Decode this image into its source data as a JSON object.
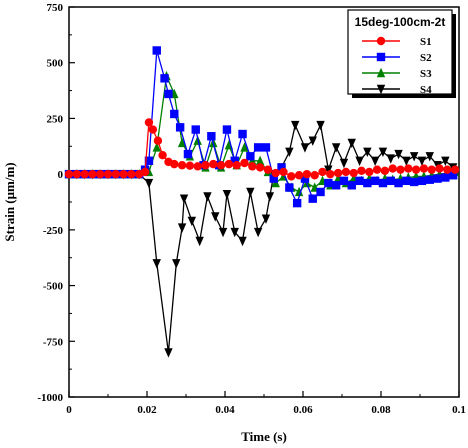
{
  "chart_data": {
    "type": "line",
    "title": "",
    "xlabel": "Time (s)",
    "ylabel": "Strain (μm/m)",
    "xlim": [
      0,
      0.1
    ],
    "ylim": [
      -1000,
      750
    ],
    "xticks": [
      0,
      0.02,
      0.04,
      0.06,
      0.08,
      0.1
    ],
    "xtick_labels": [
      "0",
      "0.02",
      "0.04",
      "0.06",
      "0.08",
      "0.1"
    ],
    "yticks": [
      -1000,
      -750,
      -500,
      -250,
      0,
      250,
      500,
      750
    ],
    "ytick_labels": [
      "-1000",
      "-750",
      "-500",
      "-250",
      "0",
      "250",
      "500",
      "750"
    ],
    "grid": false,
    "legend": {
      "title": "15deg-100cm-2t",
      "position": "top-right"
    },
    "series": [
      {
        "name": "S1",
        "color": "#ff0000",
        "marker": "circle",
        "points": [
          [
            0,
            0
          ],
          [
            0.002,
            0
          ],
          [
            0.004,
            0
          ],
          [
            0.006,
            0
          ],
          [
            0.008,
            0
          ],
          [
            0.01,
            0
          ],
          [
            0.012,
            0
          ],
          [
            0.014,
            0
          ],
          [
            0.016,
            0
          ],
          [
            0.018,
            0
          ],
          [
            0.0195,
            10
          ],
          [
            0.0205,
            232
          ],
          [
            0.0215,
            200
          ],
          [
            0.0228,
            150
          ],
          [
            0.024,
            85
          ],
          [
            0.0255,
            55
          ],
          [
            0.027,
            45
          ],
          [
            0.029,
            40
          ],
          [
            0.031,
            38
          ],
          [
            0.033,
            35
          ],
          [
            0.035,
            40
          ],
          [
            0.037,
            45
          ],
          [
            0.039,
            40
          ],
          [
            0.041,
            45
          ],
          [
            0.043,
            40
          ],
          [
            0.045,
            50
          ],
          [
            0.047,
            35
          ],
          [
            0.049,
            30
          ],
          [
            0.051,
            20
          ],
          [
            0.053,
            5
          ],
          [
            0.055,
            10
          ],
          [
            0.057,
            -10
          ],
          [
            0.059,
            -5
          ],
          [
            0.061,
            0
          ],
          [
            0.063,
            -5
          ],
          [
            0.065,
            10
          ],
          [
            0.067,
            0
          ],
          [
            0.069,
            5
          ],
          [
            0.071,
            10
          ],
          [
            0.073,
            5
          ],
          [
            0.075,
            15
          ],
          [
            0.077,
            10
          ],
          [
            0.079,
            20
          ],
          [
            0.081,
            15
          ],
          [
            0.083,
            25
          ],
          [
            0.085,
            20
          ],
          [
            0.087,
            25
          ],
          [
            0.089,
            20
          ],
          [
            0.091,
            25
          ],
          [
            0.093,
            20
          ],
          [
            0.095,
            25
          ],
          [
            0.097,
            20
          ],
          [
            0.099,
            20
          ]
        ]
      },
      {
        "name": "S2",
        "color": "#0000ff",
        "marker": "square",
        "points": [
          [
            0,
            0
          ],
          [
            0.002,
            0
          ],
          [
            0.004,
            0
          ],
          [
            0.006,
            0
          ],
          [
            0.008,
            0
          ],
          [
            0.01,
            0
          ],
          [
            0.012,
            0
          ],
          [
            0.014,
            0
          ],
          [
            0.016,
            0
          ],
          [
            0.018,
            0
          ],
          [
            0.0195,
            20
          ],
          [
            0.0205,
            60
          ],
          [
            0.0225,
            555
          ],
          [
            0.0245,
            430
          ],
          [
            0.0255,
            360
          ],
          [
            0.027,
            270
          ],
          [
            0.0285,
            210
          ],
          [
            0.0305,
            90
          ],
          [
            0.0325,
            200
          ],
          [
            0.0345,
            40
          ],
          [
            0.0365,
            170
          ],
          [
            0.0385,
            40
          ],
          [
            0.0405,
            200
          ],
          [
            0.0425,
            60
          ],
          [
            0.0445,
            180
          ],
          [
            0.0465,
            80
          ],
          [
            0.0485,
            120
          ],
          [
            0.0505,
            120
          ],
          [
            0.0525,
            -20
          ],
          [
            0.0545,
            30
          ],
          [
            0.0565,
            -60
          ],
          [
            0.0585,
            -130
          ],
          [
            0.0605,
            -20
          ],
          [
            0.0625,
            -110
          ],
          [
            0.0645,
            -80
          ],
          [
            0.0665,
            -40
          ],
          [
            0.0685,
            -50
          ],
          [
            0.0705,
            -30
          ],
          [
            0.0725,
            -50
          ],
          [
            0.0745,
            -30
          ],
          [
            0.0765,
            -40
          ],
          [
            0.0785,
            -30
          ],
          [
            0.0805,
            -40
          ],
          [
            0.0825,
            -30
          ],
          [
            0.0845,
            -40
          ],
          [
            0.0865,
            -30
          ],
          [
            0.0885,
            -35
          ],
          [
            0.0905,
            -30
          ],
          [
            0.0925,
            -25
          ],
          [
            0.0945,
            -20
          ],
          [
            0.0965,
            -15
          ],
          [
            0.0985,
            -5
          ]
        ]
      },
      {
        "name": "S3",
        "color": "#008000",
        "marker": "triangle-up",
        "points": [
          [
            0,
            0
          ],
          [
            0.002,
            0
          ],
          [
            0.004,
            0
          ],
          [
            0.006,
            0
          ],
          [
            0.008,
            0
          ],
          [
            0.01,
            0
          ],
          [
            0.012,
            0
          ],
          [
            0.014,
            0
          ],
          [
            0.016,
            0
          ],
          [
            0.018,
            0
          ],
          [
            0.0205,
            10
          ],
          [
            0.0225,
            120
          ],
          [
            0.025,
            440
          ],
          [
            0.027,
            360
          ],
          [
            0.029,
            140
          ],
          [
            0.031,
            80
          ],
          [
            0.033,
            150
          ],
          [
            0.035,
            30
          ],
          [
            0.037,
            140
          ],
          [
            0.039,
            30
          ],
          [
            0.041,
            130
          ],
          [
            0.043,
            40
          ],
          [
            0.045,
            120
          ],
          [
            0.047,
            60
          ],
          [
            0.049,
            60
          ],
          [
            0.051,
            10
          ],
          [
            0.053,
            -40
          ],
          [
            0.055,
            -10
          ],
          [
            0.057,
            -60
          ],
          [
            0.059,
            -80
          ],
          [
            0.061,
            -40
          ],
          [
            0.063,
            -60
          ],
          [
            0.065,
            -30
          ],
          [
            0.067,
            -50
          ],
          [
            0.069,
            -20
          ],
          [
            0.071,
            -40
          ],
          [
            0.073,
            -20
          ],
          [
            0.075,
            -30
          ],
          [
            0.077,
            -20
          ],
          [
            0.079,
            -30
          ],
          [
            0.081,
            -20
          ],
          [
            0.083,
            -25
          ],
          [
            0.085,
            -20
          ],
          [
            0.087,
            -15
          ],
          [
            0.089,
            -10
          ],
          [
            0.091,
            -10
          ],
          [
            0.093,
            -5
          ],
          [
            0.095,
            0
          ],
          [
            0.097,
            5
          ],
          [
            0.099,
            10
          ]
        ]
      },
      {
        "name": "S4",
        "color": "#000000",
        "marker": "triangle-down",
        "points": [
          [
            0,
            0
          ],
          [
            0.002,
            0
          ],
          [
            0.004,
            0
          ],
          [
            0.006,
            0
          ],
          [
            0.008,
            0
          ],
          [
            0.01,
            0
          ],
          [
            0.012,
            0
          ],
          [
            0.014,
            0
          ],
          [
            0.016,
            0
          ],
          [
            0.018,
            0
          ],
          [
            0.0205,
            -40
          ],
          [
            0.0225,
            -400
          ],
          [
            0.0255,
            -800
          ],
          [
            0.0275,
            -400
          ],
          [
            0.029,
            -240
          ],
          [
            0.0295,
            -110
          ],
          [
            0.0315,
            -210
          ],
          [
            0.0335,
            -300
          ],
          [
            0.0355,
            -100
          ],
          [
            0.0375,
            -190
          ],
          [
            0.0395,
            -260
          ],
          [
            0.0405,
            -90
          ],
          [
            0.0425,
            -260
          ],
          [
            0.0445,
            -300
          ],
          [
            0.0465,
            -80
          ],
          [
            0.0485,
            -260
          ],
          [
            0.0505,
            -200
          ],
          [
            0.0515,
            -100
          ],
          [
            0.0525,
            0
          ],
          [
            0.0545,
            30
          ],
          [
            0.0565,
            100
          ],
          [
            0.058,
            220
          ],
          [
            0.0605,
            120
          ],
          [
            0.0625,
            150
          ],
          [
            0.0645,
            220
          ],
          [
            0.0665,
            20
          ],
          [
            0.0685,
            120
          ],
          [
            0.0705,
            50
          ],
          [
            0.0725,
            140
          ],
          [
            0.0745,
            60
          ],
          [
            0.0765,
            100
          ],
          [
            0.0785,
            60
          ],
          [
            0.0805,
            100
          ],
          [
            0.0825,
            70
          ],
          [
            0.0845,
            90
          ],
          [
            0.0865,
            60
          ],
          [
            0.0885,
            80
          ],
          [
            0.0905,
            60
          ],
          [
            0.0925,
            80
          ],
          [
            0.0945,
            40
          ],
          [
            0.0965,
            60
          ],
          [
            0.0985,
            30
          ]
        ]
      }
    ]
  }
}
